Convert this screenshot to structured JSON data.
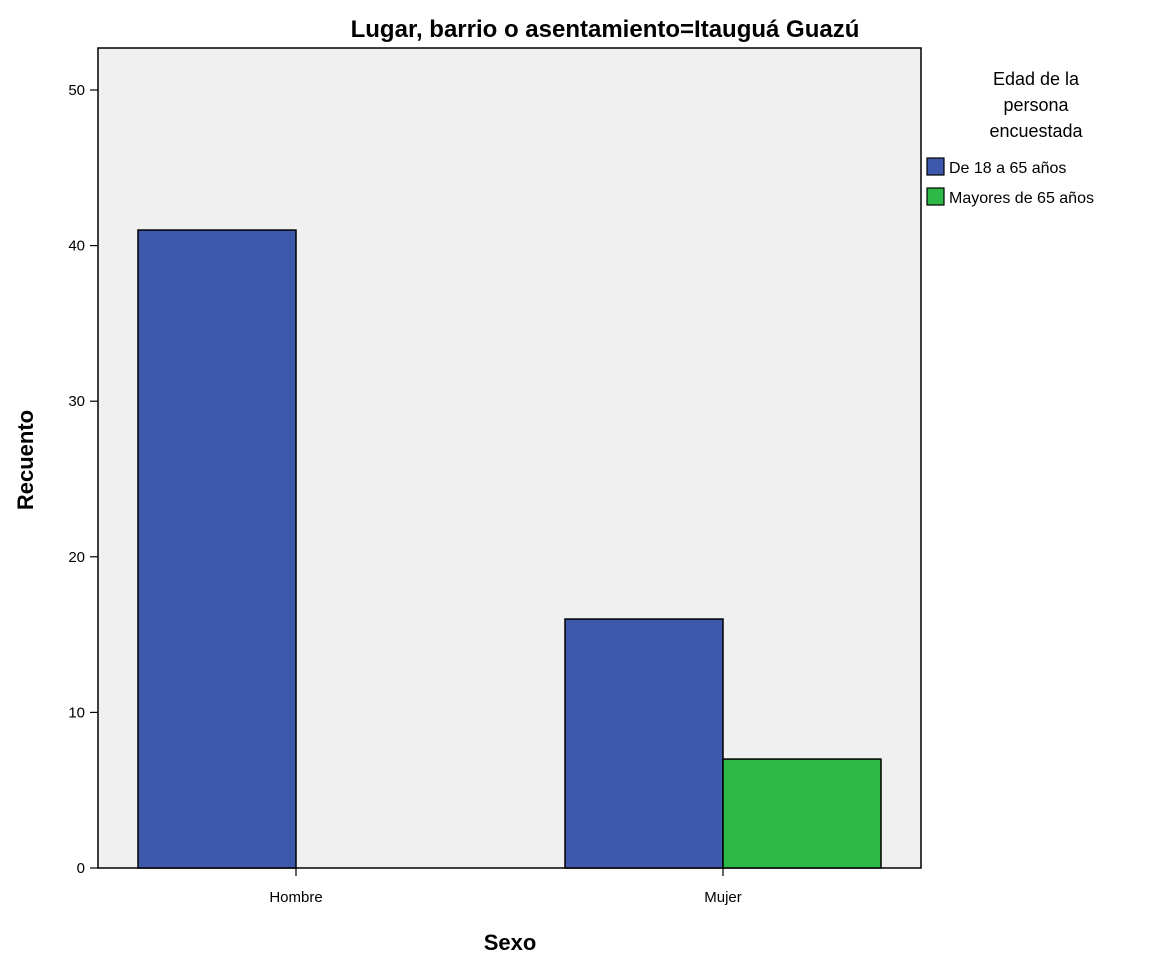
{
  "chart_data": {
    "type": "bar",
    "title": "Lugar, barrio o asentamiento=Itauguá Guazú",
    "xlabel": "Sexo",
    "ylabel": "Recuento",
    "categories": [
      "Hombre",
      "Mujer"
    ],
    "series": [
      {
        "name": "De 18 a 65 años",
        "values": [
          41,
          16
        ],
        "color": "#3e58ac"
      },
      {
        "name": "Mayores de 65 años",
        "values": [
          0,
          7
        ],
        "color": "#2eb848"
      }
    ],
    "ylim": [
      0,
      50
    ],
    "yticks": [
      0,
      10,
      20,
      30,
      40,
      50
    ],
    "grid": false,
    "legend": {
      "title": "Edad de la persona encuestada",
      "title_lines": [
        "Edad de la",
        "persona",
        "encuestada"
      ],
      "placement": "right"
    },
    "plot_background": "#f0f0f0",
    "bar_outline": "#000000"
  }
}
